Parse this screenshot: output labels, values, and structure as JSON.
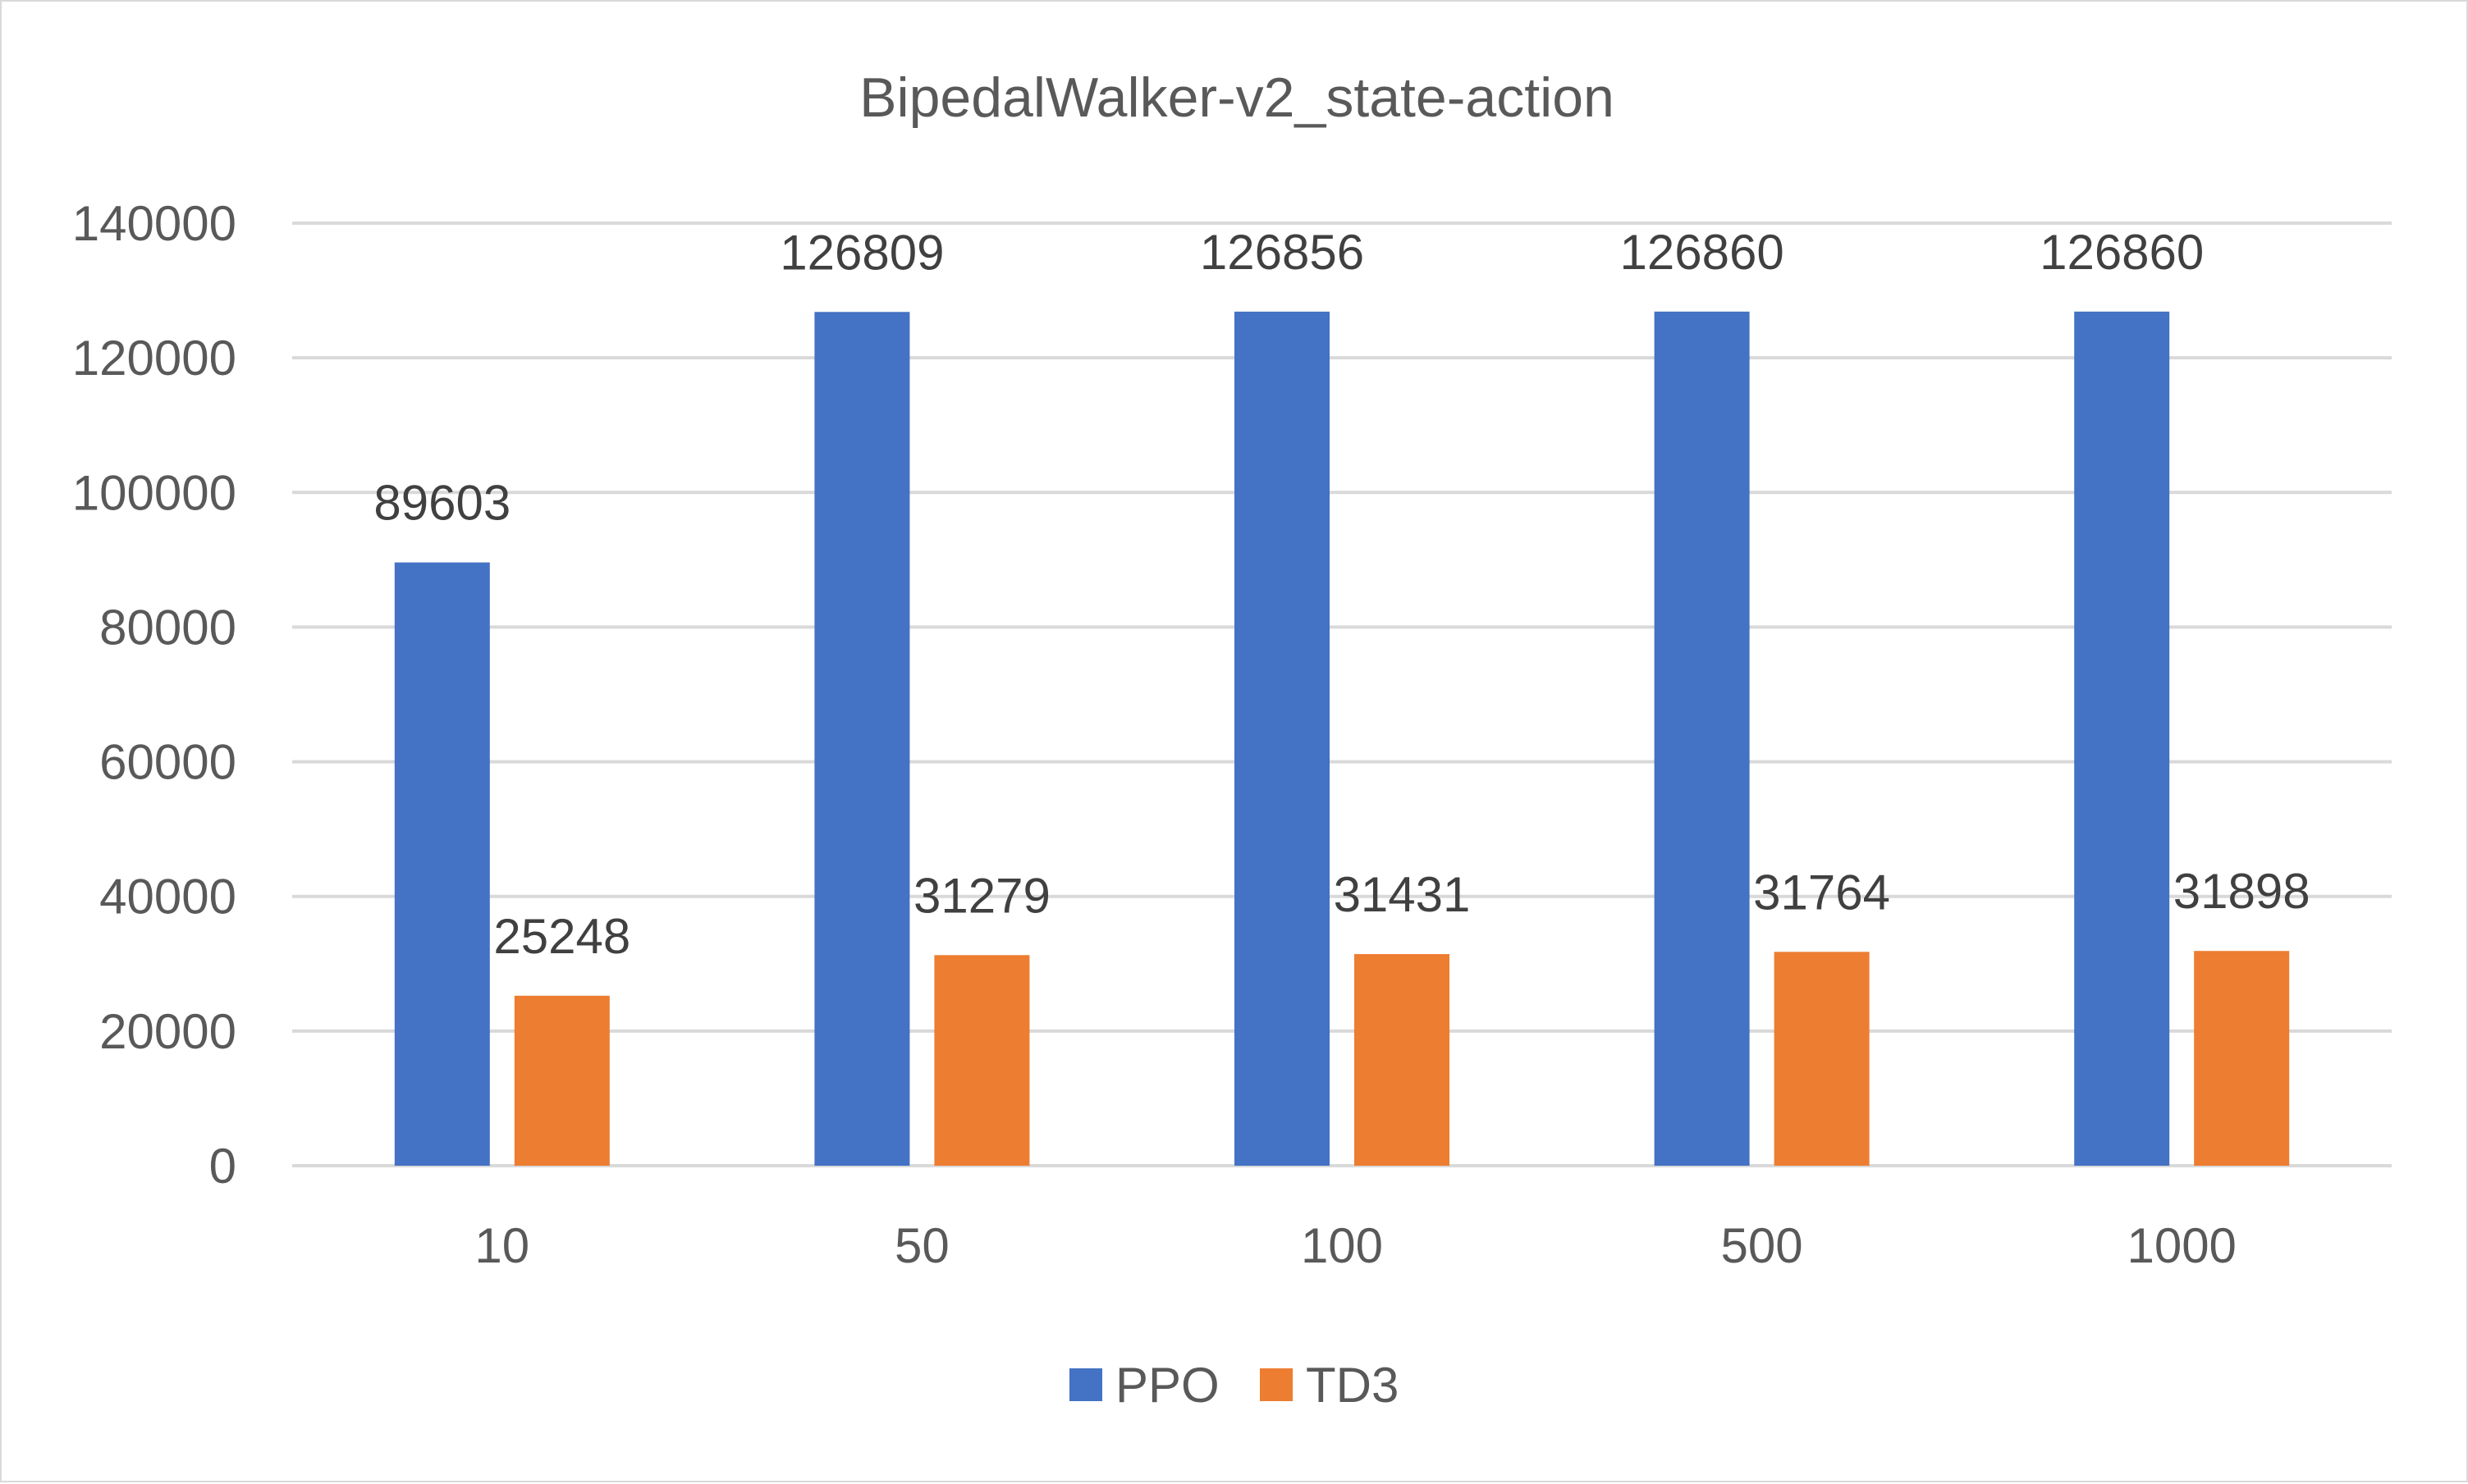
{
  "chart_data": {
    "type": "bar",
    "title": "BipedalWalker-v2_state-action",
    "xlabel": "",
    "ylabel": "",
    "categories": [
      "10",
      "50",
      "100",
      "500",
      "1000"
    ],
    "series": [
      {
        "name": "PPO",
        "color": "#4472c4",
        "values": [
          89603,
          126809,
          126856,
          126860,
          126860
        ],
        "labels": [
          "89603",
          "126809",
          "126856",
          "126860",
          "126860"
        ]
      },
      {
        "name": "TD3",
        "color": "#ed7d31",
        "values": [
          25248,
          31279,
          31431,
          31764,
          31898
        ],
        "labels": [
          "25248",
          "31279",
          "31431",
          "31764",
          "31898"
        ]
      }
    ],
    "ylim": [
      0,
      140000
    ],
    "yticks": [
      0,
      20000,
      40000,
      60000,
      80000,
      100000,
      120000,
      140000
    ],
    "ytick_labels": [
      "0",
      "20000",
      "40000",
      "60000",
      "80000",
      "100000",
      "120000",
      "140000"
    ],
    "grid": true,
    "legend_position": "bottom"
  }
}
